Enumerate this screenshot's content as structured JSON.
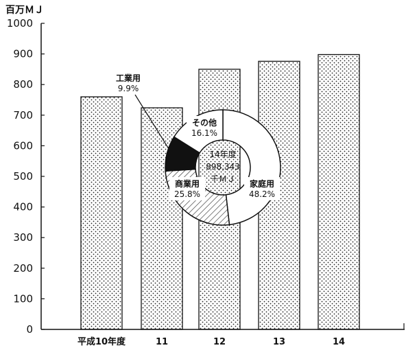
{
  "chart_data": {
    "type": "bar",
    "y_unit": "百万ＭＪ",
    "categories": [
      "平成10年度",
      "11",
      "12",
      "13",
      "14"
    ],
    "values": [
      760,
      724,
      850,
      876,
      898
    ],
    "ylim": [
      0,
      1000
    ],
    "yticks": [
      "0",
      "100",
      "200",
      "300",
      "400",
      "500",
      "600",
      "700",
      "800",
      "900",
      "1000"
    ],
    "grid": false,
    "bar_pattern": "dotted",
    "inset_donut": {
      "type": "pie",
      "year": 14,
      "center_lines": [
        "14年度",
        "898,343",
        "千ＭＪ"
      ],
      "slices": [
        {
          "label": "家庭用",
          "value_text": "48.2%",
          "value": 48.2,
          "fill": "white"
        },
        {
          "label": "商業用",
          "value_text": "25.8%",
          "value": 25.8,
          "fill": "hatched"
        },
        {
          "label": "工業用",
          "value_text": "9.9%",
          "value": 9.9,
          "fill": "black"
        },
        {
          "label": "その他",
          "value_text": "16.1%",
          "value": 16.1,
          "fill": "white"
        }
      ]
    }
  }
}
